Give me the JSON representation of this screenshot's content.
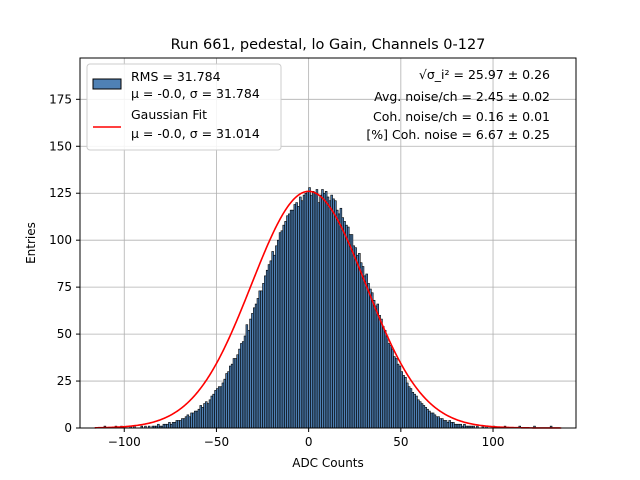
{
  "chart_data": {
    "type": "bar",
    "title": "Run 661, pedestal, lo Gain, Channels 0-127",
    "xlabel": "ADC Counts",
    "ylabel": "Entries",
    "xlim": [
      -124,
      145
    ],
    "ylim": [
      0,
      197
    ],
    "xticks": [
      -100,
      -50,
      0,
      50,
      100
    ],
    "yticks": [
      0,
      25,
      50,
      75,
      100,
      125,
      150,
      175
    ],
    "grid": true,
    "legend_position": "top-left",
    "colors": {
      "bar_fill": "#4f81b5",
      "bar_edge": "#000000",
      "fit_line": "#ff0000",
      "grid": "#b0b0b0"
    },
    "histogram": {
      "name": "RMS = 31.784",
      "name_line2": "μ = -0.0, σ = 31.784",
      "x_start": -111,
      "bin_width": 1,
      "values": [
        1,
        0,
        0,
        0,
        0,
        0,
        1,
        0,
        0,
        1,
        0,
        0,
        0,
        0,
        1,
        0,
        1,
        0,
        0,
        0,
        1,
        0,
        1,
        0,
        1,
        0,
        1,
        1,
        1,
        2,
        1,
        1,
        2,
        2,
        2,
        3,
        2,
        3,
        3,
        4,
        4,
        4,
        5,
        5,
        6,
        7,
        6,
        8,
        8,
        9,
        9,
        10,
        12,
        11,
        13,
        14,
        13,
        15,
        17,
        18,
        20,
        21,
        22,
        22,
        24,
        26,
        29,
        30,
        33,
        34,
        37,
        37,
        39,
        42,
        45,
        46,
        49,
        55,
        52,
        58,
        61,
        64,
        66,
        69,
        73,
        73,
        77,
        81,
        84,
        87,
        89,
        94,
        92,
        97,
        100,
        104,
        105,
        108,
        110,
        113,
        114,
        116,
        116,
        119,
        120,
        118,
        123,
        121,
        124,
        125,
        126,
        128,
        124,
        126,
        125,
        127,
        120,
        124,
        127,
        125,
        126,
        123,
        121,
        124,
        122,
        121,
        116,
        114,
        117,
        112,
        110,
        108,
        107,
        103,
        103,
        97,
        96,
        92,
        93,
        88,
        86,
        81,
        82,
        77,
        74,
        72,
        68,
        65,
        66,
        60,
        58,
        54,
        52,
        49,
        45,
        44,
        42,
        38,
        37,
        34,
        33,
        30,
        28,
        27,
        24,
        22,
        21,
        19,
        18,
        17,
        15,
        14,
        13,
        12,
        11,
        10,
        9,
        8,
        8,
        7,
        6,
        6,
        5,
        5,
        4,
        4,
        3,
        4,
        3,
        3,
        2,
        2,
        2,
        2,
        1,
        2,
        1,
        1,
        1,
        1,
        1,
        0,
        1,
        0,
        0,
        1,
        0,
        1,
        0,
        0,
        0,
        1,
        0,
        0,
        0,
        0,
        0,
        1,
        0,
        0,
        0,
        0,
        0,
        0,
        0,
        1,
        0,
        0,
        0,
        0,
        0,
        0,
        0,
        1,
        0,
        0,
        0,
        0,
        0,
        0,
        0,
        0,
        1,
        0
      ]
    },
    "fit": {
      "name": "Gaussian Fit",
      "name_line2": "μ = -0.0, σ = 31.014",
      "mu": 0.0,
      "sigma": 31.014,
      "amplitude": 126
    },
    "annotations": [
      "√σ_i² = 25.97 ± 0.26",
      "Avg. noise/ch = 2.45 ± 0.02",
      "Coh. noise/ch = 0.16 ± 0.01",
      "[%] Coh. noise = 6.67 ± 0.25"
    ]
  }
}
